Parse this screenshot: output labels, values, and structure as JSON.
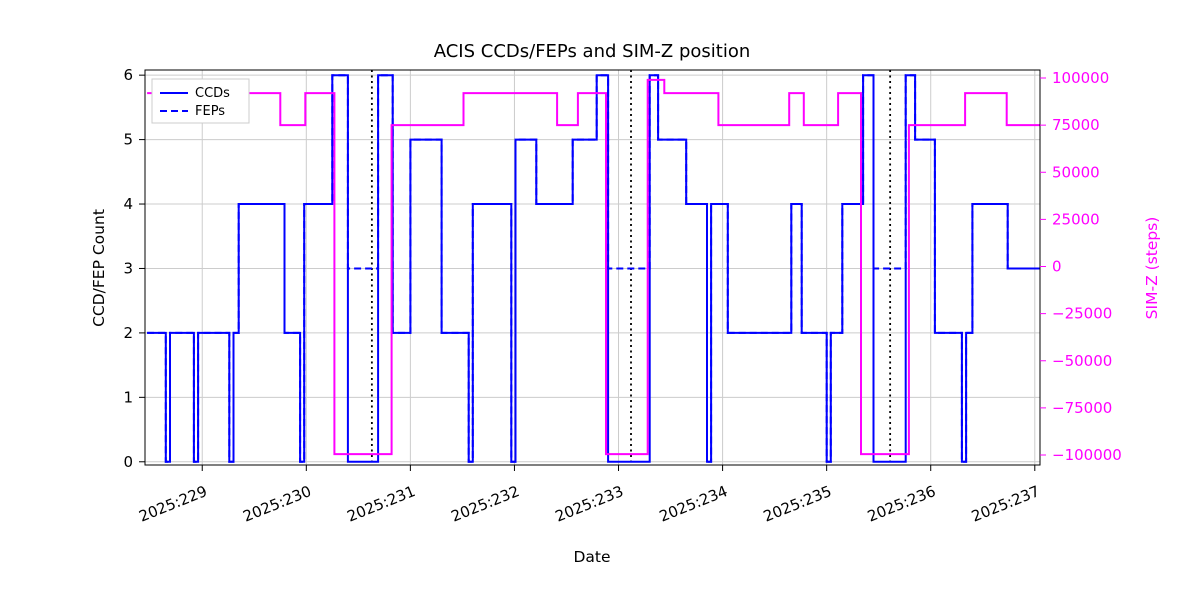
{
  "figure": {
    "background": "#ffffff"
  },
  "chart_data": {
    "type": "line",
    "subtype": "step",
    "title": "ACIS CCDs/FEPs and SIM-Z position",
    "xlabel": "Date",
    "ylabel_left": "CCD/FEP Count",
    "ylabel_right": "SIM-Z (steps)",
    "grid": true,
    "x_range": [
      228.45,
      237.05
    ],
    "yleft_range": [
      -0.05,
      6.08
    ],
    "yright_range": [
      -105300,
      104250
    ],
    "x_ticks": [
      {
        "value": 229,
        "label": "2025:229"
      },
      {
        "value": 230,
        "label": "2025:230"
      },
      {
        "value": 231,
        "label": "2025:231"
      },
      {
        "value": 232,
        "label": "2025:232"
      },
      {
        "value": 233,
        "label": "2025:233"
      },
      {
        "value": 234,
        "label": "2025:234"
      },
      {
        "value": 235,
        "label": "2025:235"
      },
      {
        "value": 236,
        "label": "2025:236"
      },
      {
        "value": 237,
        "label": "2025:237"
      }
    ],
    "yleft_ticks": [
      0,
      1,
      2,
      3,
      4,
      5,
      6
    ],
    "yright_ticks": [
      {
        "value": 100000,
        "label": "100000"
      },
      {
        "value": 75000,
        "label": "75000"
      },
      {
        "value": 50000,
        "label": "50000"
      },
      {
        "value": 25000,
        "label": "25000"
      },
      {
        "value": 0,
        "label": "0"
      },
      {
        "value": -25000,
        "label": "−25000"
      },
      {
        "value": -50000,
        "label": "−50000"
      },
      {
        "value": -75000,
        "label": "−75000"
      },
      {
        "value": -100000,
        "label": "−100000"
      }
    ],
    "colors": {
      "ccds": "#0000ff",
      "feps": "#0000ff",
      "simz": "#ff00ff",
      "vline": "#000000",
      "grid": "#cccccc"
    },
    "legend": {
      "position": "upper-left",
      "entries": [
        {
          "label": "CCDs",
          "style": "solid",
          "color": "#0000ff"
        },
        {
          "label": "FEPs",
          "style": "dashed",
          "color": "#0000ff"
        }
      ]
    },
    "vlines": [
      230.63,
      233.12,
      235.61
    ],
    "series": [
      {
        "name": "CCDs",
        "axis": "left",
        "color": "#0000ff",
        "style": "solid",
        "steps": [
          [
            228.47,
            2
          ],
          [
            228.65,
            0
          ],
          [
            228.69,
            2
          ],
          [
            228.92,
            0
          ],
          [
            228.96,
            2
          ],
          [
            229.26,
            0
          ],
          [
            229.3,
            2
          ],
          [
            229.35,
            4
          ],
          [
            229.79,
            2
          ],
          [
            229.94,
            0
          ],
          [
            229.98,
            4
          ],
          [
            230.25,
            6
          ],
          [
            230.4,
            0
          ],
          [
            230.69,
            6
          ],
          [
            230.83,
            2
          ],
          [
            231.0,
            5
          ],
          [
            231.3,
            2
          ],
          [
            231.56,
            0
          ],
          [
            231.6,
            4
          ],
          [
            231.97,
            0
          ],
          [
            232.01,
            5
          ],
          [
            232.21,
            4
          ],
          [
            232.56,
            5
          ],
          [
            232.79,
            6
          ],
          [
            232.9,
            0
          ],
          [
            233.3,
            6
          ],
          [
            233.38,
            5
          ],
          [
            233.65,
            4
          ],
          [
            233.85,
            0
          ],
          [
            233.89,
            4
          ],
          [
            234.05,
            2
          ],
          [
            234.66,
            4
          ],
          [
            234.76,
            2
          ],
          [
            235.0,
            0
          ],
          [
            235.04,
            2
          ],
          [
            235.15,
            4
          ],
          [
            235.35,
            6
          ],
          [
            235.45,
            0
          ],
          [
            235.76,
            6
          ],
          [
            235.85,
            5
          ],
          [
            236.04,
            2
          ],
          [
            236.3,
            0
          ],
          [
            236.34,
            2
          ],
          [
            236.4,
            4
          ],
          [
            236.74,
            3
          ],
          [
            237.05,
            3
          ]
        ]
      },
      {
        "name": "FEPs",
        "axis": "left",
        "color": "#0000ff",
        "style": "dashed",
        "steps": [
          [
            228.47,
            2
          ],
          [
            228.65,
            0
          ],
          [
            228.69,
            2
          ],
          [
            228.92,
            0
          ],
          [
            228.96,
            2
          ],
          [
            229.26,
            0
          ],
          [
            229.3,
            2
          ],
          [
            229.35,
            4
          ],
          [
            229.79,
            2
          ],
          [
            229.94,
            0
          ],
          [
            229.98,
            4
          ],
          [
            230.25,
            6
          ],
          [
            230.4,
            3
          ],
          [
            230.69,
            6
          ],
          [
            230.83,
            2
          ],
          [
            231.0,
            5
          ],
          [
            231.3,
            2
          ],
          [
            231.56,
            0
          ],
          [
            231.6,
            4
          ],
          [
            231.97,
            0
          ],
          [
            232.01,
            5
          ],
          [
            232.21,
            4
          ],
          [
            232.56,
            5
          ],
          [
            232.79,
            6
          ],
          [
            232.9,
            3
          ],
          [
            233.3,
            6
          ],
          [
            233.38,
            5
          ],
          [
            233.65,
            4
          ],
          [
            233.85,
            0
          ],
          [
            233.89,
            4
          ],
          [
            234.05,
            2
          ],
          [
            234.66,
            4
          ],
          [
            234.76,
            2
          ],
          [
            235.0,
            0
          ],
          [
            235.04,
            2
          ],
          [
            235.15,
            4
          ],
          [
            235.35,
            6
          ],
          [
            235.45,
            3
          ],
          [
            235.76,
            6
          ],
          [
            235.85,
            5
          ],
          [
            236.04,
            2
          ],
          [
            236.3,
            0
          ],
          [
            236.34,
            2
          ],
          [
            236.4,
            4
          ],
          [
            236.74,
            3
          ],
          [
            237.05,
            3
          ]
        ]
      },
      {
        "name": "SIM-Z",
        "axis": "right",
        "color": "#ff00ff",
        "style": "solid",
        "steps": [
          [
            228.47,
            92000
          ],
          [
            229.75,
            75000
          ],
          [
            229.99,
            92000
          ],
          [
            230.27,
            -99500
          ],
          [
            230.82,
            75000
          ],
          [
            231.51,
            92000
          ],
          [
            232.41,
            75000
          ],
          [
            232.61,
            92000
          ],
          [
            232.88,
            -99500
          ],
          [
            233.28,
            99000
          ],
          [
            233.44,
            92000
          ],
          [
            233.96,
            75000
          ],
          [
            234.64,
            92000
          ],
          [
            234.78,
            75000
          ],
          [
            235.11,
            92000
          ],
          [
            235.33,
            -99500
          ],
          [
            235.79,
            75000
          ],
          [
            236.33,
            92000
          ],
          [
            236.73,
            75000
          ],
          [
            237.05,
            75000
          ]
        ]
      }
    ]
  }
}
